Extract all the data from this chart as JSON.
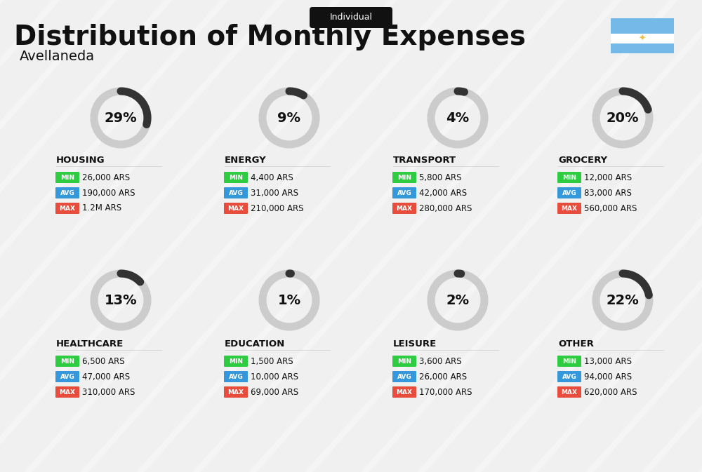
{
  "title": "Distribution of Monthly Expenses",
  "subtitle": "Individual",
  "location": "Avellaneda",
  "bg_color": "#f0f0f0",
  "title_color": "#111111",
  "categories": [
    {
      "name": "HOUSING",
      "pct": 29,
      "min": "26,000 ARS",
      "avg": "190,000 ARS",
      "max": "1.2M ARS",
      "col": 0,
      "row": 0
    },
    {
      "name": "ENERGY",
      "pct": 9,
      "min": "4,400 ARS",
      "avg": "31,000 ARS",
      "max": "210,000 ARS",
      "col": 1,
      "row": 0
    },
    {
      "name": "TRANSPORT",
      "pct": 4,
      "min": "5,800 ARS",
      "avg": "42,000 ARS",
      "max": "280,000 ARS",
      "col": 2,
      "row": 0
    },
    {
      "name": "GROCERY",
      "pct": 20,
      "min": "12,000 ARS",
      "avg": "83,000 ARS",
      "max": "560,000 ARS",
      "col": 3,
      "row": 0
    },
    {
      "name": "HEALTHCARE",
      "pct": 13,
      "min": "6,500 ARS",
      "avg": "47,000 ARS",
      "max": "310,000 ARS",
      "col": 0,
      "row": 1
    },
    {
      "name": "EDUCATION",
      "pct": 1,
      "min": "1,500 ARS",
      "avg": "10,000 ARS",
      "max": "69,000 ARS",
      "col": 1,
      "row": 1
    },
    {
      "name": "LEISURE",
      "pct": 2,
      "min": "3,600 ARS",
      "avg": "26,000 ARS",
      "max": "170,000 ARS",
      "col": 2,
      "row": 1
    },
    {
      "name": "OTHER",
      "pct": 22,
      "min": "13,000 ARS",
      "avg": "94,000 ARS",
      "max": "620,000 ARS",
      "col": 3,
      "row": 1
    }
  ],
  "min_color": "#2ecc40",
  "avg_color": "#3498db",
  "max_color": "#e74c3c",
  "donut_active": "#333333",
  "donut_bg": "#cccccc",
  "label_fontsize": 9,
  "pct_fontsize": 14,
  "cat_fontsize": 9.5,
  "val_fontsize": 8.5
}
